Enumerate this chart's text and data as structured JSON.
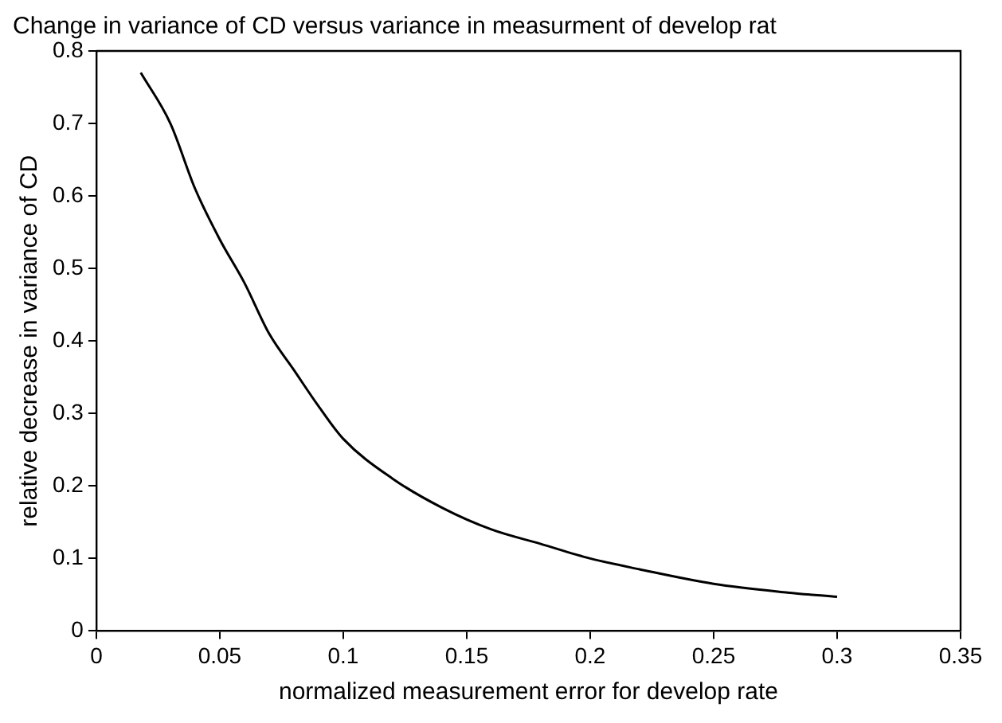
{
  "chart_data": {
    "type": "line",
    "title": "Change in variance of CD versus variance in measurment of develop rat",
    "xlabel": "normalized measurement error for develop rate",
    "ylabel": "relative decrease in variance of CD",
    "x": [
      0.018,
      0.03,
      0.04,
      0.05,
      0.06,
      0.07,
      0.08,
      0.09,
      0.1,
      0.12,
      0.14,
      0.16,
      0.18,
      0.2,
      0.22,
      0.25,
      0.28,
      0.3
    ],
    "series": [
      {
        "color": "#000000",
        "values": [
          0.77,
          0.7,
          0.61,
          0.54,
          0.48,
          0.41,
          0.36,
          0.31,
          0.265,
          0.21,
          0.17,
          0.14,
          0.12,
          0.1,
          0.085,
          0.065,
          0.053,
          0.047
        ]
      }
    ],
    "xlim": [
      0,
      0.35
    ],
    "xticks": [
      0,
      0.05,
      0.1,
      0.15,
      0.2,
      0.25,
      0.3,
      0.35
    ],
    "ylim": [
      0,
      0.8
    ],
    "yticks": [
      0,
      0.1,
      0.2,
      0.3,
      0.4,
      0.5,
      0.6,
      0.7,
      0.8
    ],
    "grid": false,
    "legend": false,
    "marker": "none",
    "line_style": "solid"
  }
}
